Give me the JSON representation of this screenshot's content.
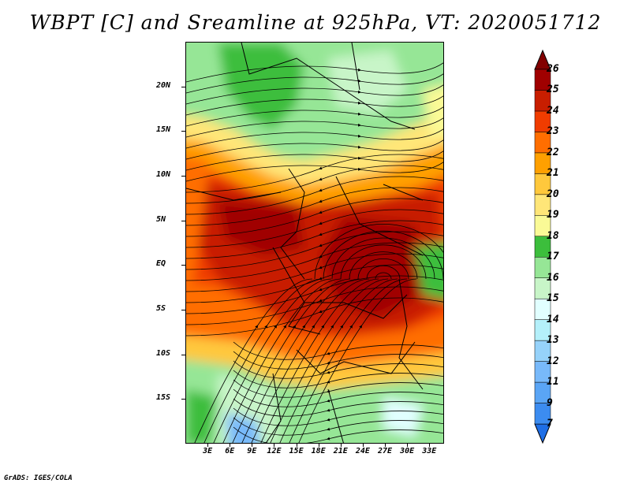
{
  "title": "WBPT [C] and Sreamline at 925hPa, VT: 2020051712",
  "footer": "GrADS: IGES/COLA",
  "map": {
    "variable": "Wet-bulb potential temperature",
    "units": "C",
    "level": "925hPa",
    "valid_time": "2020051712",
    "lat_labels": [
      "20N",
      "15N",
      "10N",
      "5N",
      "EQ",
      "5S",
      "10S",
      "15S"
    ],
    "lat_values": [
      20,
      15,
      10,
      5,
      0,
      -5,
      -10,
      -15
    ],
    "lon_labels": [
      "3E",
      "6E",
      "9E",
      "12E",
      "15E",
      "18E",
      "21E",
      "24E",
      "27E",
      "30E",
      "33E"
    ],
    "lon_values": [
      3,
      6,
      9,
      12,
      15,
      18,
      21,
      24,
      27,
      30,
      33
    ],
    "lat_range": [
      -20,
      25
    ],
    "lon_range": [
      0,
      35
    ]
  },
  "colorbar": {
    "levels": [
      "7",
      "9",
      "11",
      "12",
      "13",
      "14",
      "15",
      "16",
      "17",
      "18",
      "19",
      "20",
      "21",
      "22",
      "23",
      "24",
      "25",
      "26"
    ],
    "colors": [
      "#1e6ee6",
      "#3c8cf0",
      "#5aa5f5",
      "#78b9fa",
      "#96d2fa",
      "#b4f0fa",
      "#e1ffff",
      "#c8f5c8",
      "#96e696",
      "#3cbe3c",
      "#fafa96",
      "#ffe678",
      "#ffc83c",
      "#ffa000",
      "#ff6e00",
      "#f03c00",
      "#c81e00",
      "#a00000",
      "#820000"
    ]
  }
}
